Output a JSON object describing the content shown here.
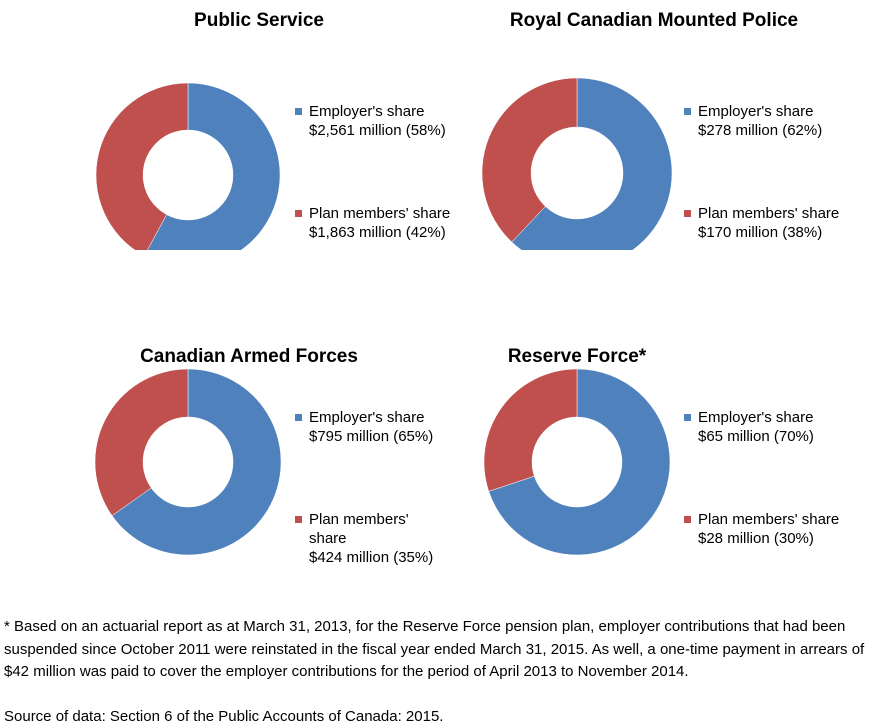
{
  "colors": {
    "employer": "#4f81bd",
    "members": "#c0504d"
  },
  "chart_data": [
    {
      "type": "pie",
      "title": "Public Service",
      "slices": [
        {
          "name": "Employer's share",
          "value": 2561,
          "percent": 58,
          "label": "$2,561 million (58%)"
        },
        {
          "name": "Plan members' share",
          "value": 1863,
          "percent": 42,
          "label": "$1,863 million (42%)"
        }
      ]
    },
    {
      "type": "pie",
      "title": "Royal Canadian Mounted Police",
      "slices": [
        {
          "name": "Employer's share",
          "value": 278,
          "percent": 62,
          "label": "$278 million (62%)"
        },
        {
          "name": "Plan members' share",
          "value": 170,
          "percent": 38,
          "label": "$170 million (38%)"
        }
      ]
    },
    {
      "type": "pie",
      "title": "Canadian Armed Forces",
      "slices": [
        {
          "name": "Employer's share",
          "value": 795,
          "percent": 65,
          "label": "$795 million (65%)"
        },
        {
          "name": "Plan members' share",
          "value": 424,
          "percent": 35,
          "label": "$424 million (35%)"
        }
      ]
    },
    {
      "type": "pie",
      "title": "Reserve Force*",
      "slices": [
        {
          "name": "Employer's share",
          "value": 65,
          "percent": 70,
          "label": "$65 million (70%)"
        },
        {
          "name": "Plan members' share",
          "value": 28,
          "percent": 30,
          "label": "$28 million (30%)"
        }
      ]
    }
  ],
  "footnote": "* Based on an actuarial report as at March 31, 2013, for the Reserve Force pension plan, employer contributions that had been suspended since October 2011 were reinstated in the fiscal year ended March 31, 2015. As well, a one-time payment in arrears of $42 million was paid to cover the employer contributions for the period of April 2013 to November 2014.",
  "source": "Source of data: Section 6 of the Public Accounts of Canada: 2015."
}
